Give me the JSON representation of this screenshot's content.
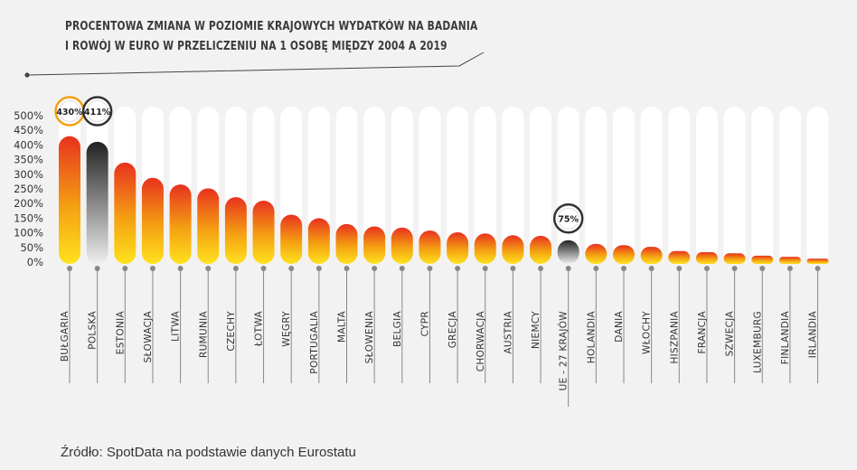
{
  "title_lines": [
    "PROCENTOWA ZMIANA W POZIOMIE KRAJOWYCH WYDATKÓW NA BADANIA",
    "I ROWÓJ W EURO W PRZELICZENIU NA 1 OSOBĘ MIĘDZY 2004 A 2019"
  ],
  "source": "Źródło: SpotData na podstawie danych Eurostatu",
  "colors": {
    "bar_top": "#e8321f",
    "bar_mid": "#f4a012",
    "bar_bottom": "#ffe21e",
    "highlight_dark": "#222222",
    "highlight_light": "#eeeeee",
    "track": "#ffffff",
    "background": "#f2f2f2",
    "text": "#3a3a3a"
  },
  "chart_data": {
    "type": "bar",
    "categories": [
      "BUŁGARIA",
      "POLSKA",
      "ESTONIA",
      "SŁOWACJA",
      "LITWA",
      "RUMUNIA",
      "CZECHY",
      "ŁOTWA",
      "WĘGRY",
      "PORTUGALIA",
      "MALTA",
      "SŁOWENIA",
      "BELGIA",
      "CYPR",
      "GRECJA",
      "CHORWACJA",
      "AUSTRIA",
      "NIEMCY",
      "UE - 27 KRAJÓW",
      "HOLANDIA",
      "DANIA",
      "WŁOCHY",
      "HISZPANIA",
      "FRANCJA",
      "SZWECJA",
      "LUXEMBURG",
      "FINLANDIA",
      "IRLANDIA"
    ],
    "values": [
      430,
      411,
      340,
      288,
      265,
      252,
      222,
      210,
      162,
      150,
      130,
      122,
      118,
      108,
      102,
      98,
      92,
      90,
      75,
      62,
      58,
      52,
      38,
      34,
      30,
      22,
      18,
      12
    ],
    "highlight": [
      "BUŁGARIA",
      "POLSKA",
      "UE - 27 KRAJÓW"
    ],
    "data_labels": [
      {
        "category": "BUŁGARIA",
        "text": "430%"
      },
      {
        "category": "POLSKA",
        "text": "411%"
      },
      {
        "category": "UE - 27 KRAJÓW",
        "text": "75%"
      }
    ],
    "y_ticks": [
      "0%",
      "50%",
      "100%",
      "150%",
      "200%",
      "250%",
      "300%",
      "350%",
      "400%",
      "450%",
      "500%"
    ],
    "ylim": [
      0,
      500
    ],
    "grid": false,
    "legend": false
  }
}
